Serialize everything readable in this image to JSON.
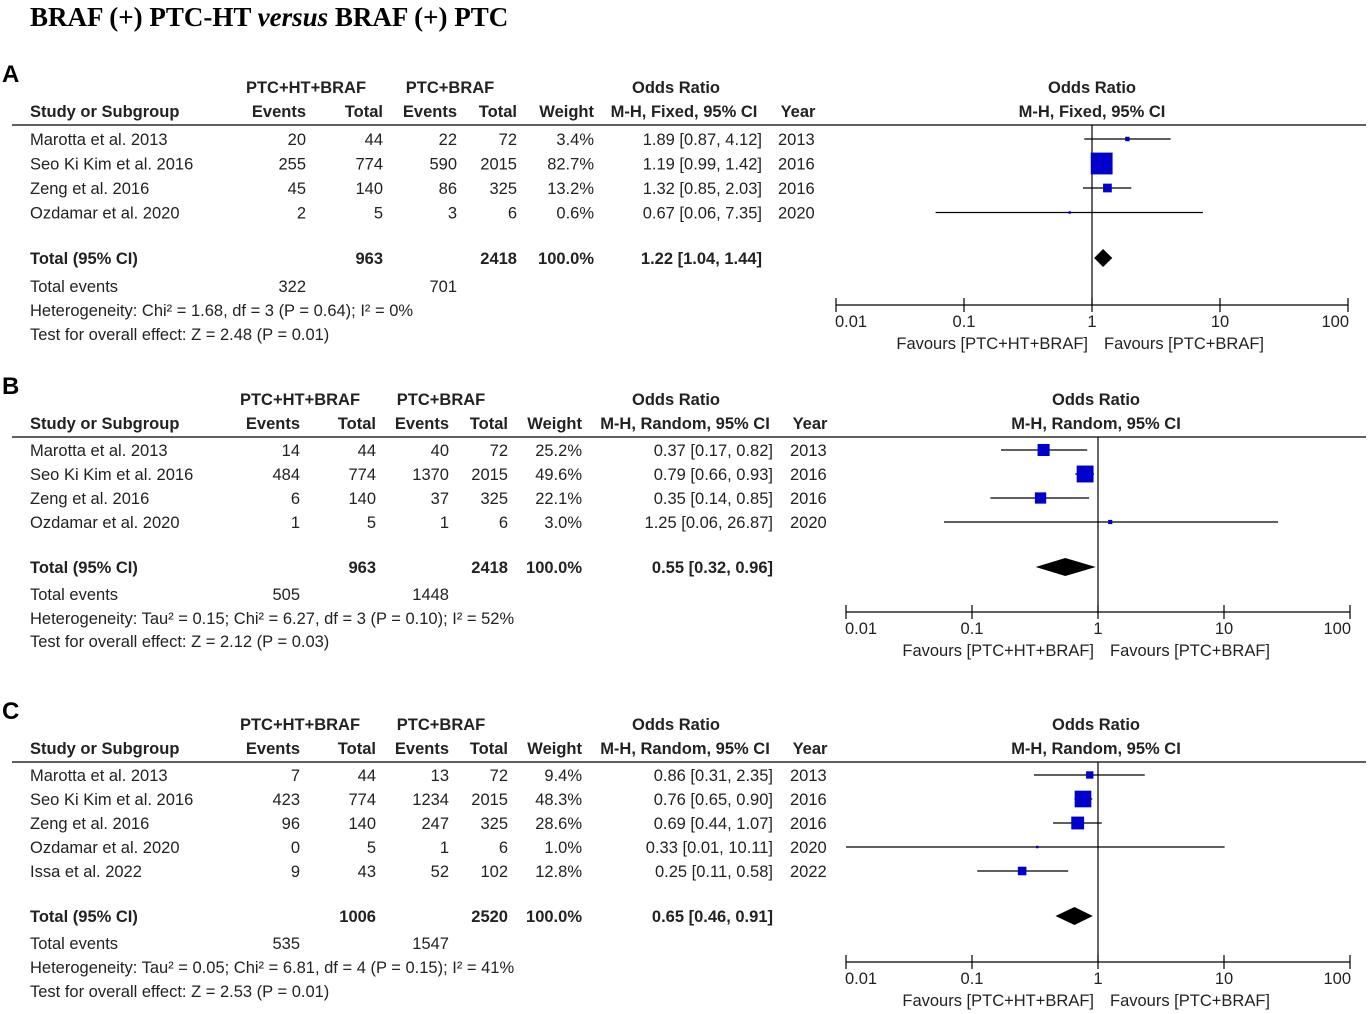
{
  "figure_title": "BRAF (+) PTC-HT versus BRAF (+) PTC",
  "title_parts": [
    "BRAF (+) PTC-HT ",
    "versus",
    " BRAF (+) PTC"
  ],
  "colors": {
    "square": "#0000cc",
    "diamond": "#000000",
    "text": "#222222"
  },
  "chart_data": [
    {
      "type": "forest",
      "panel_label": "A",
      "group1_label": "PTC+HT+BRAF",
      "group2_label": "PTC+BRAF",
      "effect_label": "Odds Ratio",
      "method_label": "M-H, Fixed, 95% CI",
      "columns": [
        "Study or Subgroup",
        "Events",
        "Total",
        "Events",
        "Total",
        "Weight",
        "M-H, Fixed, 95% CI",
        "Year"
      ],
      "studies": [
        {
          "name": "Marotta et al. 2013",
          "e1": "20",
          "n1": "44",
          "e2": "22",
          "n2": "72",
          "weight": "3.4%",
          "ci_text": "1.89 [0.87, 4.12]",
          "year": "2013",
          "or": 1.89,
          "lo": 0.87,
          "hi": 4.12,
          "w": 3.4
        },
        {
          "name": "Seo Ki Kim et al. 2016",
          "e1": "255",
          "n1": "774",
          "e2": "590",
          "n2": "2015",
          "weight": "82.7%",
          "ci_text": "1.19 [0.99, 1.42]",
          "year": "2016",
          "or": 1.19,
          "lo": 0.99,
          "hi": 1.42,
          "w": 82.7
        },
        {
          "name": "Zeng et al. 2016",
          "e1": "45",
          "n1": "140",
          "e2": "86",
          "n2": "325",
          "weight": "13.2%",
          "ci_text": "1.32 [0.85, 2.03]",
          "year": "2016",
          "or": 1.32,
          "lo": 0.85,
          "hi": 2.03,
          "w": 13.2
        },
        {
          "name": "Ozdamar et al. 2020",
          "e1": "2",
          "n1": "5",
          "e2": "3",
          "n2": "6",
          "weight": "0.6%",
          "ci_text": "0.67 [0.06, 7.35]",
          "year": "2020",
          "or": 0.67,
          "lo": 0.06,
          "hi": 7.35,
          "w": 0.6
        }
      ],
      "total": {
        "label": "Total (95% CI)",
        "n1": "963",
        "n2": "2418",
        "weight": "100.0%",
        "ci_text": "1.22 [1.04, 1.44]",
        "or": 1.22,
        "lo": 1.04,
        "hi": 1.44
      },
      "total_events": {
        "label": "Total events",
        "e1": "322",
        "e2": "701"
      },
      "heterogeneity": "Heterogeneity: Chi² = 1.68, df = 3 (P = 0.64); I² = 0%",
      "overall_effect": "Test for overall effect: Z = 2.48 (P = 0.01)",
      "axis": {
        "scale": "log",
        "ticks": [
          "0.01",
          "0.1",
          "1",
          "10",
          "100"
        ],
        "xlim": [
          0.01,
          100
        ]
      },
      "favours_left": "Favours [PTC+HT+BRAF]",
      "favours_right": "Favours [PTC+BRAF]"
    },
    {
      "type": "forest",
      "panel_label": "B",
      "group1_label": "PTC+HT+BRAF",
      "group2_label": "PTC+BRAF",
      "effect_label": "Odds Ratio",
      "method_label": "M-H, Random, 95% CI",
      "columns": [
        "Study or Subgroup",
        "Events",
        "Total",
        "Events",
        "Total",
        "Weight",
        "M-H, Random, 95% CI",
        "Year"
      ],
      "studies": [
        {
          "name": "Marotta et al. 2013",
          "e1": "14",
          "n1": "44",
          "e2": "40",
          "n2": "72",
          "weight": "25.2%",
          "ci_text": "0.37 [0.17, 0.82]",
          "year": "2013",
          "or": 0.37,
          "lo": 0.17,
          "hi": 0.82,
          "w": 25.2
        },
        {
          "name": "Seo Ki Kim et al. 2016",
          "e1": "484",
          "n1": "774",
          "e2": "1370",
          "n2": "2015",
          "weight": "49.6%",
          "ci_text": "0.79 [0.66, 0.93]",
          "year": "2016",
          "or": 0.79,
          "lo": 0.66,
          "hi": 0.93,
          "w": 49.6
        },
        {
          "name": "Zeng et al. 2016",
          "e1": "6",
          "n1": "140",
          "e2": "37",
          "n2": "325",
          "weight": "22.1%",
          "ci_text": "0.35 [0.14, 0.85]",
          "year": "2016",
          "or": 0.35,
          "lo": 0.14,
          "hi": 0.85,
          "w": 22.1
        },
        {
          "name": "Ozdamar et al. 2020",
          "e1": "1",
          "n1": "5",
          "e2": "1",
          "n2": "6",
          "weight": "3.0%",
          "ci_text": "1.25 [0.06, 26.87]",
          "year": "2020",
          "or": 1.25,
          "lo": 0.06,
          "hi": 26.87,
          "w": 3.0
        }
      ],
      "total": {
        "label": "Total (95% CI)",
        "n1": "963",
        "n2": "2418",
        "weight": "100.0%",
        "ci_text": "0.55 [0.32, 0.96]",
        "or": 0.55,
        "lo": 0.32,
        "hi": 0.96
      },
      "total_events": {
        "label": "Total events",
        "e1": "505",
        "e2": "1448"
      },
      "heterogeneity": "Heterogeneity: Tau² = 0.15; Chi² = 6.27, df = 3 (P = 0.10); I² = 52%",
      "overall_effect": "Test for overall effect: Z = 2.12 (P = 0.03)",
      "axis": {
        "scale": "log",
        "ticks": [
          "0.01",
          "0.1",
          "1",
          "10",
          "100"
        ],
        "xlim": [
          0.01,
          100
        ]
      },
      "favours_left": "Favours [PTC+HT+BRAF]",
      "favours_right": "Favours [PTC+BRAF]"
    },
    {
      "type": "forest",
      "panel_label": "C",
      "group1_label": "PTC+HT+BRAF",
      "group2_label": "PTC+BRAF",
      "effect_label": "Odds Ratio",
      "method_label": "M-H, Random, 95% CI",
      "columns": [
        "Study or Subgroup",
        "Events",
        "Total",
        "Events",
        "Total",
        "Weight",
        "M-H, Random, 95% CI",
        "Year"
      ],
      "studies": [
        {
          "name": "Marotta et al. 2013",
          "e1": "7",
          "n1": "44",
          "e2": "13",
          "n2": "72",
          "weight": "9.4%",
          "ci_text": "0.86 [0.31, 2.35]",
          "year": "2013",
          "or": 0.86,
          "lo": 0.31,
          "hi": 2.35,
          "w": 9.4
        },
        {
          "name": "Seo Ki Kim et al. 2016",
          "e1": "423",
          "n1": "774",
          "e2": "1234",
          "n2": "2015",
          "weight": "48.3%",
          "ci_text": "0.76 [0.65, 0.90]",
          "year": "2016",
          "or": 0.76,
          "lo": 0.65,
          "hi": 0.9,
          "w": 48.3
        },
        {
          "name": "Zeng et al. 2016",
          "e1": "96",
          "n1": "140",
          "e2": "247",
          "n2": "325",
          "weight": "28.6%",
          "ci_text": "0.69 [0.44, 1.07]",
          "year": "2016",
          "or": 0.69,
          "lo": 0.44,
          "hi": 1.07,
          "w": 28.6
        },
        {
          "name": "Ozdamar et al. 2020",
          "e1": "0",
          "n1": "5",
          "e2": "1",
          "n2": "6",
          "weight": "1.0%",
          "ci_text": "0.33 [0.01, 10.11]",
          "year": "2020",
          "or": 0.33,
          "lo": 0.01,
          "hi": 10.11,
          "w": 1.0
        },
        {
          "name": "Issa et al. 2022",
          "e1": "9",
          "n1": "43",
          "e2": "52",
          "n2": "102",
          "weight": "12.8%",
          "ci_text": "0.25 [0.11, 0.58]",
          "year": "2022",
          "or": 0.25,
          "lo": 0.11,
          "hi": 0.58,
          "w": 12.8
        }
      ],
      "total": {
        "label": "Total (95% CI)",
        "n1": "1006",
        "n2": "2520",
        "weight": "100.0%",
        "ci_text": "0.65 [0.46, 0.91]",
        "or": 0.65,
        "lo": 0.46,
        "hi": 0.91
      },
      "total_events": {
        "label": "Total events",
        "e1": "535",
        "e2": "1547"
      },
      "heterogeneity": "Heterogeneity: Tau² = 0.05; Chi² = 6.81, df = 4 (P = 0.15); I² = 41%",
      "overall_effect": "Test for overall effect: Z = 2.53 (P = 0.01)",
      "axis": {
        "scale": "log",
        "ticks": [
          "0.01",
          "0.1",
          "1",
          "10",
          "100"
        ],
        "xlim": [
          0.01,
          100
        ]
      },
      "favours_left": "Favours [PTC+HT+BRAF]",
      "favours_right": "Favours [PTC+BRAF]"
    }
  ]
}
